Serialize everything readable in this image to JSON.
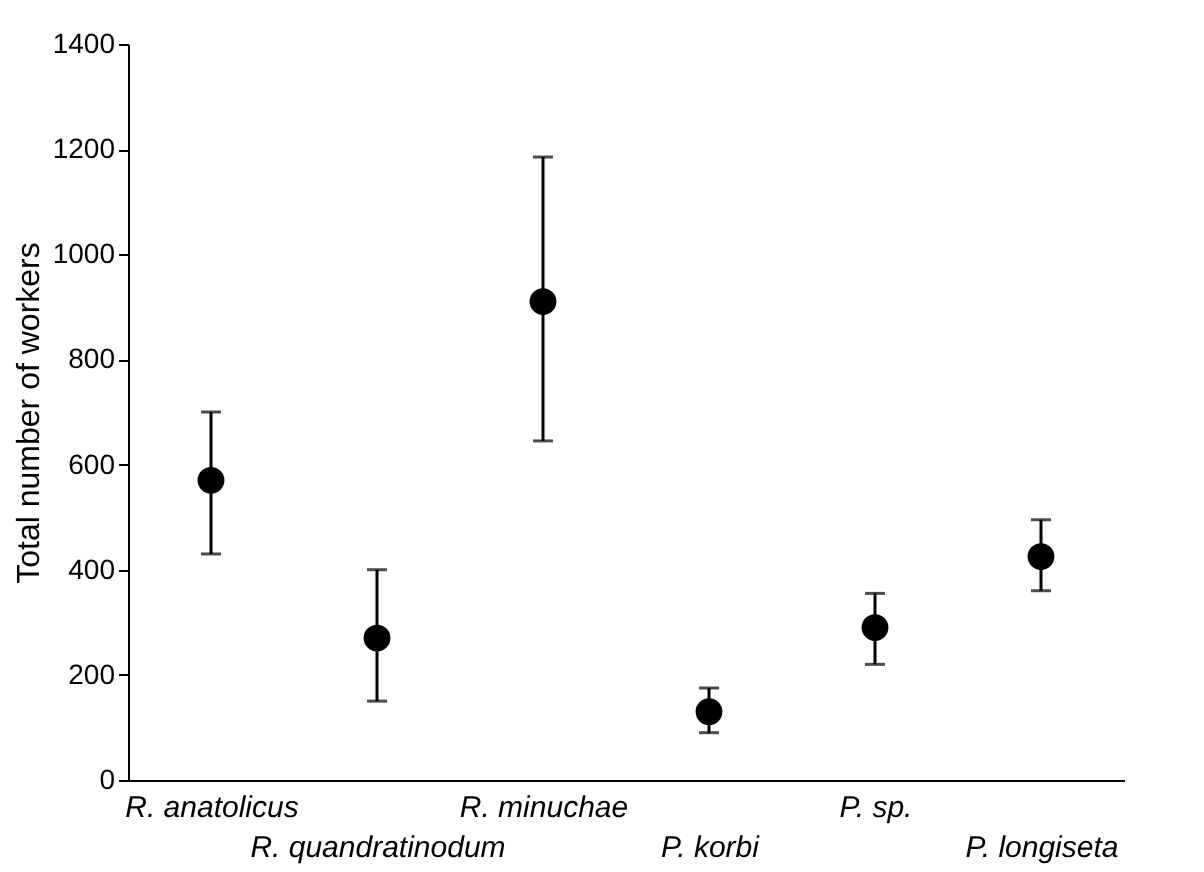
{
  "chart_data": {
    "type": "scatter",
    "ylabel": "Total number of workers",
    "categories": [
      "R. anatolicus",
      "R. quandratinodum",
      "R. minuchae",
      "P. korbi",
      "P. sp.",
      "P. longiseta"
    ],
    "values": [
      570,
      270,
      910,
      130,
      290,
      425
    ],
    "errors": [
      [
        430,
        700
      ],
      [
        150,
        400
      ],
      [
        645,
        1185
      ],
      [
        90,
        175
      ],
      [
        220,
        355
      ],
      [
        360,
        495
      ]
    ],
    "color": "#000000",
    "marker": "circle",
    "ylim": [
      0,
      1400
    ],
    "yticks": [
      0,
      200,
      400,
      600,
      800,
      1000,
      1200,
      1400
    ],
    "grid": false
  }
}
